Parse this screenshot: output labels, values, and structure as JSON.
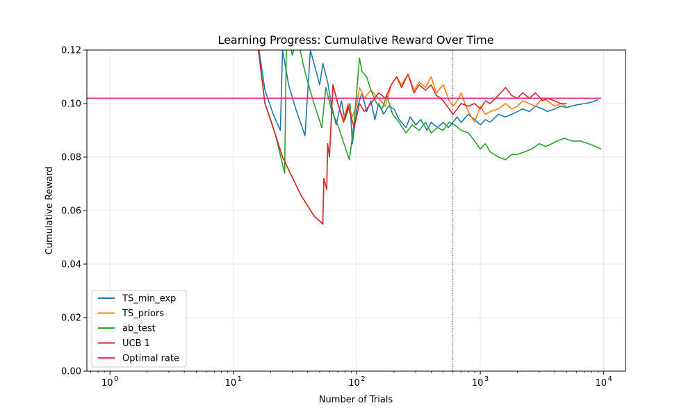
{
  "chart_data": {
    "type": "line",
    "title": "Learning Progress: Cumulative Reward Over Time",
    "xlabel": "Number of Trials",
    "ylabel": "Cumulative Reward",
    "xscale": "log",
    "xlim": [
      0.65,
      15000
    ],
    "ylim": [
      0,
      0.12
    ],
    "grid": true,
    "legend_position": "bottom-left",
    "x_ticks": [
      {
        "value": 1,
        "label": "10",
        "exp": "0"
      },
      {
        "value": 10,
        "label": "10",
        "exp": "1"
      },
      {
        "value": 100,
        "label": "10",
        "exp": "2"
      },
      {
        "value": 1000,
        "label": "10",
        "exp": "3"
      },
      {
        "value": 10000,
        "label": "10",
        "exp": "4"
      }
    ],
    "y_ticks": [
      {
        "value": 0.0,
        "label": "0.00"
      },
      {
        "value": 0.02,
        "label": "0.02"
      },
      {
        "value": 0.04,
        "label": "0.04"
      },
      {
        "value": 0.06,
        "label": "0.06"
      },
      {
        "value": 0.08,
        "label": "0.08"
      },
      {
        "value": 0.1,
        "label": "0.10"
      },
      {
        "value": 0.12,
        "label": "0.12"
      }
    ],
    "vertical_line_x": 600,
    "optimal_rate": 0.102,
    "series": [
      {
        "name": "TS_min_exp",
        "color": "#1f77b4",
        "points": [
          [
            15,
            0.13
          ],
          [
            18,
            0.105
          ],
          [
            21,
            0.096
          ],
          [
            24,
            0.09
          ],
          [
            25,
            0.12
          ],
          [
            28,
            0.107
          ],
          [
            32,
            0.098
          ],
          [
            38,
            0.088
          ],
          [
            42,
            0.12
          ],
          [
            50,
            0.107
          ],
          [
            53,
            0.115
          ],
          [
            58,
            0.108
          ],
          [
            62,
            0.1
          ],
          [
            68,
            0.092
          ],
          [
            75,
            0.101
          ],
          [
            80,
            0.094
          ],
          [
            88,
            0.1
          ],
          [
            92,
            0.085
          ],
          [
            100,
            0.098
          ],
          [
            110,
            0.104
          ],
          [
            120,
            0.097
          ],
          [
            130,
            0.101
          ],
          [
            140,
            0.094
          ],
          [
            150,
            0.1
          ],
          [
            165,
            0.096
          ],
          [
            180,
            0.099
          ],
          [
            200,
            0.098
          ],
          [
            220,
            0.094
          ],
          [
            250,
            0.091
          ],
          [
            270,
            0.095
          ],
          [
            300,
            0.092
          ],
          [
            330,
            0.094
          ],
          [
            370,
            0.09
          ],
          [
            400,
            0.093
          ],
          [
            450,
            0.091
          ],
          [
            500,
            0.093
          ],
          [
            550,
            0.091
          ],
          [
            600,
            0.093
          ],
          [
            650,
            0.095
          ],
          [
            700,
            0.093
          ],
          [
            800,
            0.096
          ],
          [
            900,
            0.094
          ],
          [
            1000,
            0.092
          ],
          [
            1100,
            0.094
          ],
          [
            1200,
            0.093
          ],
          [
            1400,
            0.096
          ],
          [
            1600,
            0.095
          ],
          [
            1800,
            0.096
          ],
          [
            2000,
            0.097
          ],
          [
            2200,
            0.098
          ],
          [
            2500,
            0.097
          ],
          [
            2800,
            0.099
          ],
          [
            3200,
            0.098
          ],
          [
            3500,
            0.097
          ],
          [
            4000,
            0.098
          ],
          [
            4500,
            0.099
          ],
          [
            5000,
            0.0985
          ],
          [
            6000,
            0.0995
          ],
          [
            7000,
            0.1
          ],
          [
            8000,
            0.1005
          ],
          [
            9000,
            0.1015
          ]
        ]
      },
      {
        "name": "TS_priors",
        "color": "#ff7f0e",
        "points": [
          [
            15,
            0.13
          ],
          [
            18,
            0.1
          ],
          [
            20,
            0.094
          ],
          [
            25,
            0.08
          ],
          [
            35,
            0.066
          ],
          [
            45,
            0.058
          ],
          [
            53,
            0.055
          ],
          [
            54,
            0.072
          ],
          [
            57,
            0.068
          ],
          [
            58,
            0.085
          ],
          [
            60,
            0.08
          ],
          [
            64,
            0.107
          ],
          [
            70,
            0.1
          ],
          [
            78,
            0.094
          ],
          [
            85,
            0.1
          ],
          [
            92,
            0.095
          ],
          [
            100,
            0.1
          ],
          [
            105,
            0.106
          ],
          [
            115,
            0.102
          ],
          [
            130,
            0.105
          ],
          [
            150,
            0.102
          ],
          [
            170,
            0.099
          ],
          [
            190,
            0.107
          ],
          [
            210,
            0.11
          ],
          [
            230,
            0.107
          ],
          [
            260,
            0.111
          ],
          [
            290,
            0.105
          ],
          [
            320,
            0.108
          ],
          [
            360,
            0.106
          ],
          [
            400,
            0.11
          ],
          [
            440,
            0.104
          ],
          [
            500,
            0.107
          ],
          [
            560,
            0.101
          ],
          [
            600,
            0.099
          ],
          [
            650,
            0.101
          ],
          [
            700,
            0.104
          ],
          [
            750,
            0.1
          ],
          [
            800,
            0.097
          ],
          [
            900,
            0.093
          ],
          [
            1000,
            0.099
          ],
          [
            1100,
            0.096
          ],
          [
            1200,
            0.097
          ],
          [
            1400,
            0.098
          ],
          [
            1600,
            0.1
          ],
          [
            1800,
            0.098
          ],
          [
            2000,
            0.099
          ],
          [
            2200,
            0.101
          ],
          [
            2500,
            0.1
          ],
          [
            2800,
            0.099
          ],
          [
            3200,
            0.102
          ],
          [
            3500,
            0.101
          ],
          [
            4000,
            0.099
          ],
          [
            4500,
            0.1
          ],
          [
            5000,
            0.099
          ]
        ]
      },
      {
        "name": "ab_test",
        "color": "#2ca02c",
        "points": [
          [
            15,
            0.13
          ],
          [
            18,
            0.1
          ],
          [
            22,
            0.088
          ],
          [
            26,
            0.074
          ],
          [
            27,
            0.13
          ],
          [
            30,
            0.118
          ],
          [
            33,
            0.125
          ],
          [
            37,
            0.114
          ],
          [
            40,
            0.108
          ],
          [
            45,
            0.1
          ],
          [
            52,
            0.091
          ],
          [
            56,
            0.106
          ],
          [
            62,
            0.098
          ],
          [
            70,
            0.092
          ],
          [
            80,
            0.084
          ],
          [
            87,
            0.079
          ],
          [
            95,
            0.093
          ],
          [
            105,
            0.117
          ],
          [
            110,
            0.112
          ],
          [
            120,
            0.11
          ],
          [
            130,
            0.105
          ],
          [
            145,
            0.1
          ],
          [
            160,
            0.098
          ],
          [
            175,
            0.103
          ],
          [
            195,
            0.096
          ],
          [
            220,
            0.093
          ],
          [
            250,
            0.089
          ],
          [
            280,
            0.092
          ],
          [
            320,
            0.09
          ],
          [
            360,
            0.093
          ],
          [
            400,
            0.089
          ],
          [
            450,
            0.091
          ],
          [
            500,
            0.09
          ],
          [
            560,
            0.093
          ],
          [
            620,
            0.092
          ],
          [
            700,
            0.09
          ],
          [
            800,
            0.089
          ],
          [
            900,
            0.086
          ],
          [
            1000,
            0.083
          ],
          [
            1100,
            0.085
          ],
          [
            1200,
            0.082
          ],
          [
            1400,
            0.08
          ],
          [
            1600,
            0.079
          ],
          [
            1800,
            0.081
          ],
          [
            2000,
            0.081
          ],
          [
            2300,
            0.082
          ],
          [
            2600,
            0.083
          ],
          [
            3000,
            0.085
          ],
          [
            3400,
            0.084
          ],
          [
            3800,
            0.085
          ],
          [
            4200,
            0.086
          ],
          [
            4800,
            0.087
          ],
          [
            5500,
            0.086
          ],
          [
            6500,
            0.086
          ],
          [
            7500,
            0.085
          ],
          [
            8500,
            0.084
          ],
          [
            9500,
            0.083
          ]
        ]
      },
      {
        "name": "UCB 1",
        "color": "#d62728",
        "points": [
          [
            15,
            0.13
          ],
          [
            18,
            0.1
          ],
          [
            20,
            0.094
          ],
          [
            25,
            0.08
          ],
          [
            35,
            0.066
          ],
          [
            45,
            0.058
          ],
          [
            53,
            0.055
          ],
          [
            54,
            0.072
          ],
          [
            57,
            0.068
          ],
          [
            58,
            0.085
          ],
          [
            60,
            0.08
          ],
          [
            64,
            0.107
          ],
          [
            70,
            0.1
          ],
          [
            78,
            0.093
          ],
          [
            85,
            0.099
          ],
          [
            95,
            0.091
          ],
          [
            105,
            0.1
          ],
          [
            115,
            0.097
          ],
          [
            130,
            0.1
          ],
          [
            150,
            0.104
          ],
          [
            170,
            0.102
          ],
          [
            190,
            0.107
          ],
          [
            210,
            0.11
          ],
          [
            230,
            0.106
          ],
          [
            260,
            0.111
          ],
          [
            290,
            0.104
          ],
          [
            320,
            0.107
          ],
          [
            360,
            0.105
          ],
          [
            400,
            0.107
          ],
          [
            440,
            0.103
          ],
          [
            480,
            0.102
          ],
          [
            520,
            0.1
          ],
          [
            560,
            0.098
          ],
          [
            600,
            0.096
          ],
          [
            650,
            0.098
          ],
          [
            700,
            0.1
          ],
          [
            800,
            0.099
          ],
          [
            900,
            0.1
          ],
          [
            1000,
            0.098
          ],
          [
            1100,
            0.101
          ],
          [
            1200,
            0.1
          ],
          [
            1400,
            0.103
          ],
          [
            1600,
            0.106
          ],
          [
            1800,
            0.103
          ],
          [
            2000,
            0.102
          ],
          [
            2200,
            0.104
          ],
          [
            2500,
            0.102
          ],
          [
            2800,
            0.104
          ],
          [
            3200,
            0.101
          ],
          [
            3500,
            0.102
          ],
          [
            4000,
            0.101
          ],
          [
            4500,
            0.1
          ],
          [
            5000,
            0.1
          ]
        ]
      },
      {
        "name": "Optimal rate",
        "color": "#e7298a",
        "points": [
          [
            0.65,
            0.102
          ],
          [
            9500,
            0.102
          ]
        ]
      }
    ]
  }
}
